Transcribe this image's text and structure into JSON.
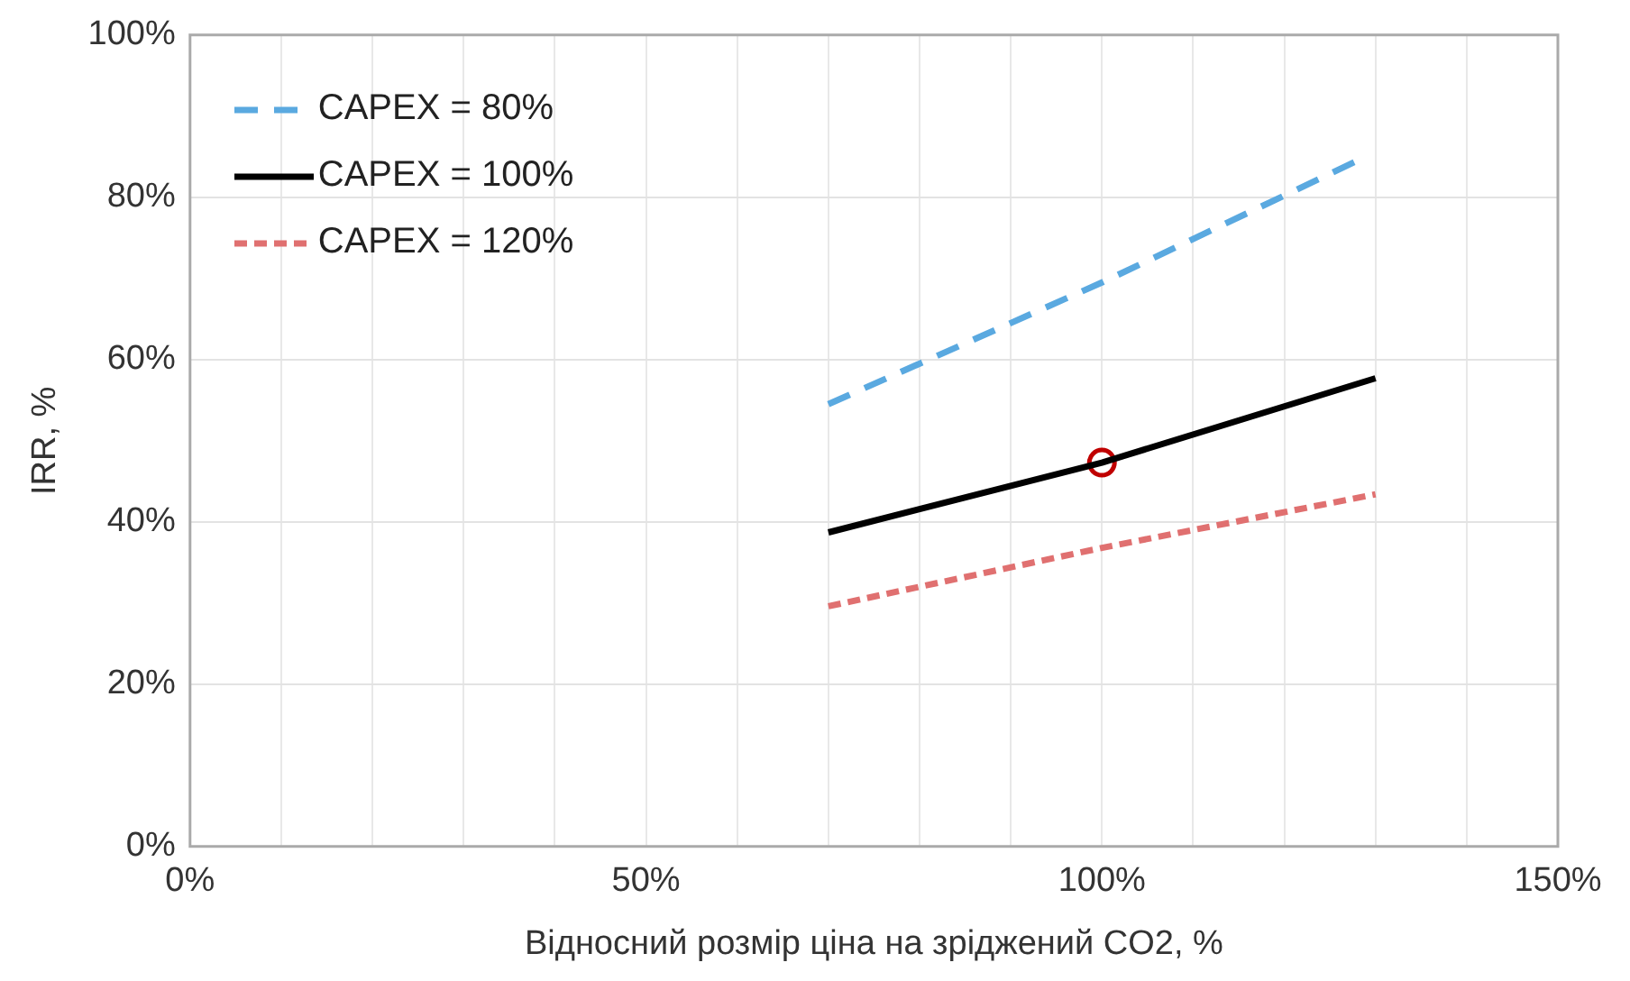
{
  "chart_data": {
    "type": "line",
    "xlabel": "Відносний розмір ціна на зріджений CO2, %",
    "ylabel": "IRR, %",
    "xlim": [
      0,
      150
    ],
    "xticks": [
      {
        "value": 0,
        "label": "0%"
      },
      {
        "value": 10,
        "label": null
      },
      {
        "value": 20,
        "label": null
      },
      {
        "value": 30,
        "label": null
      },
      {
        "value": 40,
        "label": null
      },
      {
        "value": 50,
        "label": "50%"
      },
      {
        "value": 60,
        "label": null
      },
      {
        "value": 70,
        "label": null
      },
      {
        "value": 80,
        "label": null
      },
      {
        "value": 90,
        "label": null
      },
      {
        "value": 100,
        "label": "100%"
      },
      {
        "value": 110,
        "label": null
      },
      {
        "value": 120,
        "label": null
      },
      {
        "value": 130,
        "label": null
      },
      {
        "value": 140,
        "label": null
      },
      {
        "value": 150,
        "label": "150%"
      }
    ],
    "ylim": [
      0,
      100
    ],
    "yticks": [
      {
        "value": 0,
        "label": "0%"
      },
      {
        "value": 20,
        "label": "20%"
      },
      {
        "value": 40,
        "label": "40%"
      },
      {
        "value": 60,
        "label": "60%"
      },
      {
        "value": 80,
        "label": "80%"
      },
      {
        "value": 100,
        "label": "100%"
      }
    ],
    "grid": true,
    "legend": "top left",
    "marker": "none",
    "series": [
      {
        "name": "CAPEX = 80%",
        "color": "#5aa9e0",
        "line_style": "dashed",
        "x": [
          70,
          100,
          128
        ],
        "values": [
          54.5,
          69.5,
          84.5
        ]
      },
      {
        "name": "CAPEX = 100%",
        "color": "#000000",
        "line_style": "solid",
        "x": [
          70,
          100,
          130
        ],
        "values": [
          38.7,
          47.3,
          57.7
        ]
      },
      {
        "name": "CAPEX = 120%",
        "color": "#e07070",
        "line_style": "dotted",
        "x": [
          70,
          100,
          130
        ],
        "values": [
          29.6,
          36.8,
          43.4
        ]
      },
      {
        "type": "scatter",
        "color": "#c00000",
        "marker": "circle",
        "x": [
          100
        ],
        "values": [
          47.3
        ]
      }
    ]
  }
}
